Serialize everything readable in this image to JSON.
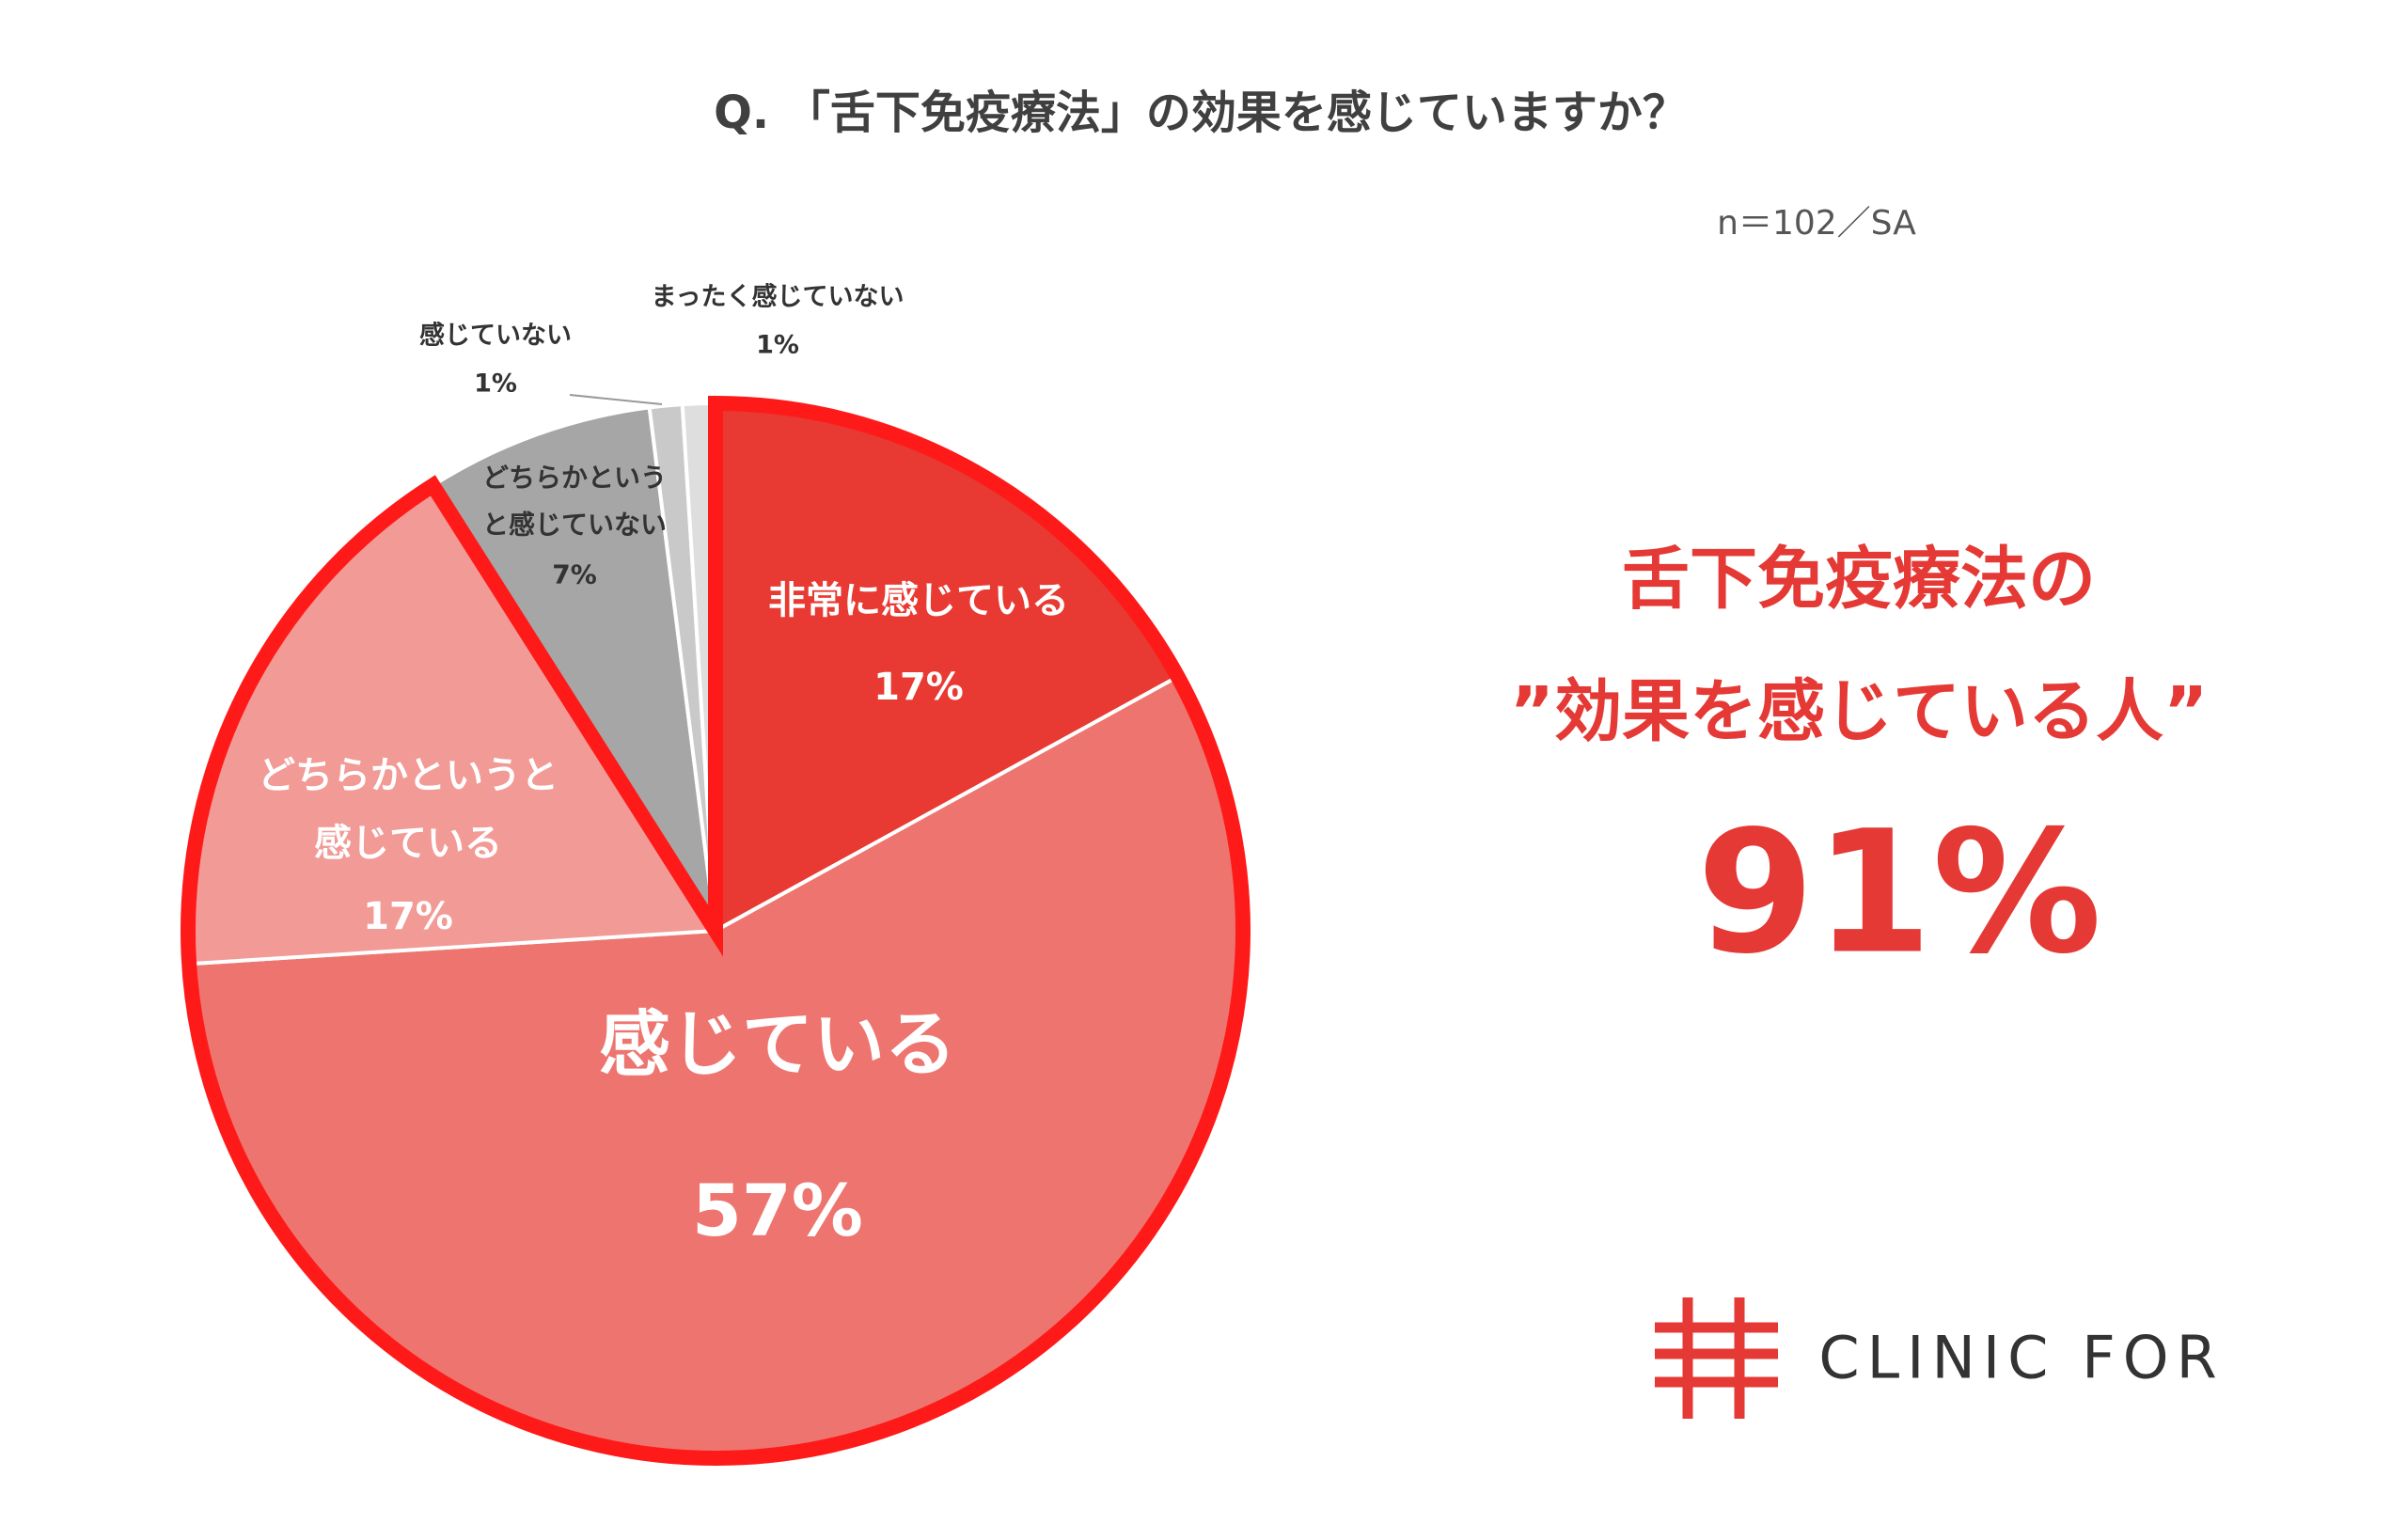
{
  "chart_data": {
    "type": "pie",
    "title": "Q. 「舌下免疫療法」の効果を感じていますか？",
    "subtitle": "n＝102／SA",
    "categories": [
      "非常に感じている",
      "感じている",
      "どちらかというと感じている",
      "どちらかというと感じていない",
      "感じていない",
      "まったく感じていない"
    ],
    "values": [
      17,
      57,
      17,
      7,
      1,
      1
    ],
    "value_labels": [
      "17%",
      "57%",
      "17%",
      "7%",
      "1%",
      "1%"
    ],
    "colors": [
      "#e83a32",
      "#ee756f",
      "#f29a96",
      "#a6a6a6",
      "#c9c9c9",
      "#dedede"
    ]
  },
  "callout": {
    "line1": "舌下免疫療法の",
    "line2": "”効果を感じている人”",
    "value": "91%"
  },
  "logo": {
    "text": "CLINIC FOR"
  }
}
